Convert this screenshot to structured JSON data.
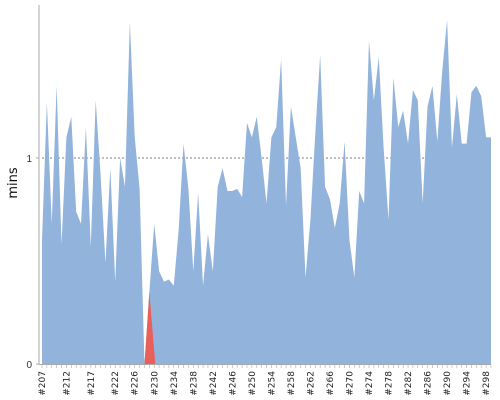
{
  "chart_data": {
    "type": "area",
    "title": "",
    "xlabel": "",
    "ylabel": "mins",
    "ylim": [
      0,
      1.65
    ],
    "yticks": [
      0,
      1
    ],
    "reference_line": {
      "y": 1,
      "style": "dotted"
    },
    "colors": {
      "area": "#92b3dc",
      "highlight": "#e8605a",
      "reference": "#555555",
      "axis": "#aaaaaa"
    },
    "highlight_category": "#230",
    "categories": [
      "#207",
      "#208",
      "#209",
      "#210",
      "#211",
      "#212",
      "#213",
      "#214",
      "#215",
      "#216",
      "#217",
      "#218",
      "#219",
      "#220",
      "#221",
      "#222",
      "#223",
      "#224",
      "#225",
      "#226",
      "#227",
      "#228",
      "#229",
      "#230",
      "#231",
      "#232",
      "#233",
      "#234",
      "#235",
      "#236",
      "#237",
      "#238",
      "#239",
      "#240",
      "#241",
      "#242",
      "#243",
      "#244",
      "#245",
      "#246",
      "#247",
      "#248",
      "#249",
      "#250",
      "#251",
      "#252",
      "#253",
      "#254",
      "#255",
      "#256",
      "#257",
      "#258",
      "#259",
      "#260",
      "#261",
      "#262",
      "#263",
      "#264",
      "#265",
      "#266",
      "#267",
      "#268",
      "#269",
      "#270",
      "#271",
      "#272",
      "#273",
      "#274",
      "#275",
      "#276",
      "#277",
      "#278",
      "#279",
      "#280",
      "#281",
      "#282",
      "#283",
      "#284",
      "#285",
      "#286",
      "#287",
      "#288",
      "#289",
      "#290",
      "#291",
      "#292",
      "#293",
      "#294",
      "#295",
      "#296",
      "#297",
      "#298",
      "#299"
    ],
    "tick_labels": [
      "#207",
      "#212",
      "#217",
      "#222",
      "#226",
      "#230",
      "#234",
      "#238",
      "#242",
      "#246",
      "#250",
      "#254",
      "#258",
      "#262",
      "#266",
      "#270",
      "#274",
      "#278",
      "#282",
      "#286",
      "#290",
      "#294",
      "#298"
    ],
    "series": [
      {
        "values": [
          0.6,
          1.27,
          0.68,
          1.35,
          0.58,
          1.1,
          1.2,
          0.74,
          0.68,
          1.15,
          0.57,
          1.28,
          0.92,
          0.49,
          0.95,
          0.4,
          1.0,
          0.86,
          1.66,
          1.1,
          0.85,
          0.0,
          0.35,
          0.68,
          0.45,
          0.4,
          0.41,
          0.38,
          0.65,
          1.07,
          0.85,
          0.45,
          0.83,
          0.38,
          0.63,
          0.45,
          0.86,
          0.95,
          0.84,
          0.84,
          0.85,
          0.81,
          1.17,
          1.1,
          1.2,
          1.0,
          0.78,
          1.1,
          1.15,
          1.48,
          0.77,
          1.25,
          1.1,
          0.95,
          0.42,
          0.7,
          1.12,
          1.5,
          0.86,
          0.8,
          0.66,
          0.78,
          1.08,
          0.6,
          0.42,
          0.84,
          0.78,
          1.57,
          1.28,
          1.49,
          1.05,
          0.7,
          1.39,
          1.15,
          1.23,
          1.07,
          1.33,
          1.28,
          0.78,
          1.25,
          1.35,
          1.08,
          1.42,
          1.67,
          1.05,
          1.31,
          1.07,
          1.07,
          1.32,
          1.35,
          1.3,
          1.1,
          1.1
        ]
      }
    ]
  }
}
